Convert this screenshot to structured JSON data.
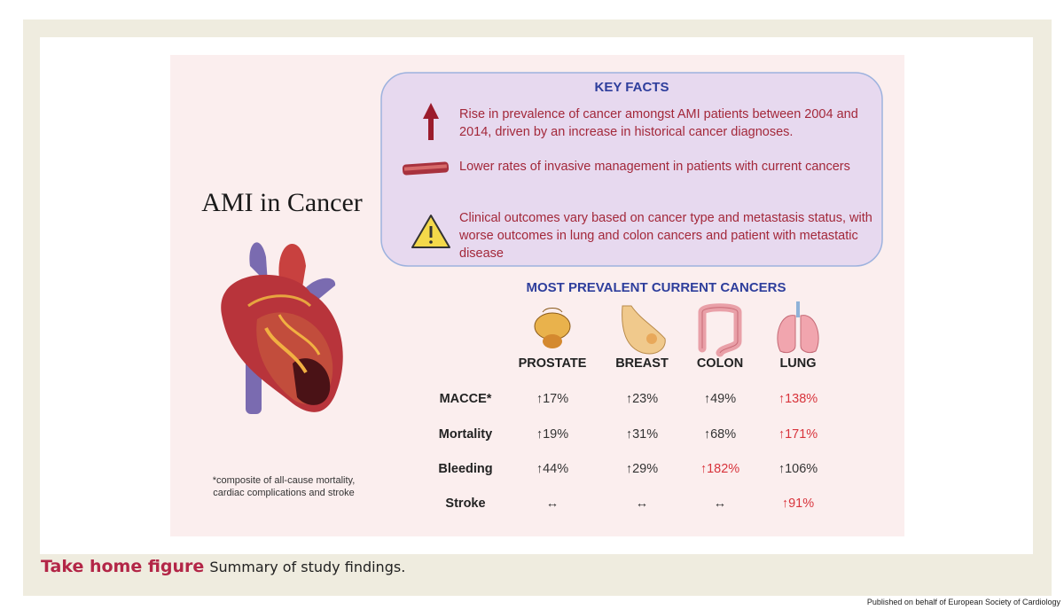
{
  "figure": {
    "title": "AMI in Cancer",
    "footnote": "*composite of all-cause mortality, cardiac complications and stroke",
    "key_facts": {
      "title": "KEY FACTS",
      "items": [
        "Rise in prevalence of cancer amongst AMI patients between 2004 and 2014, driven by an increase in historical cancer diagnoses.",
        "Lower rates of invasive management  in patients with current cancers",
        "Clinical outcomes vary based on cancer type and metastasis status, with worse outcomes in lung and colon cancers and patient with metastatic disease"
      ]
    },
    "table": {
      "title": "MOST PREVALENT CURRENT CANCERS",
      "columns": [
        "PROSTATE",
        "BREAST",
        "COLON",
        "LUNG"
      ],
      "rows": [
        {
          "label": "MACCE*",
          "cells": [
            {
              "text": "↑17%",
              "color": "#333333"
            },
            {
              "text": "↑23%",
              "color": "#333333"
            },
            {
              "text": "↑49%",
              "color": "#333333"
            },
            {
              "text": "↑138%",
              "color": "#d8343c"
            }
          ]
        },
        {
          "label": "Mortality",
          "cells": [
            {
              "text": "↑19%",
              "color": "#333333"
            },
            {
              "text": "↑31%",
              "color": "#333333"
            },
            {
              "text": "↑68%",
              "color": "#333333"
            },
            {
              "text": "↑171%",
              "color": "#d8343c"
            }
          ]
        },
        {
          "label": "Bleeding",
          "cells": [
            {
              "text": "↑44%",
              "color": "#333333"
            },
            {
              "text": "↑29%",
              "color": "#333333"
            },
            {
              "text": "↑182%",
              "color": "#d8343c"
            },
            {
              "text": "↑106%",
              "color": "#333333"
            }
          ]
        },
        {
          "label": "Stroke",
          "cells": [
            {
              "text": "↔",
              "color": "#333333"
            },
            {
              "text": "↔",
              "color": "#333333"
            },
            {
              "text": "↔",
              "color": "#333333"
            },
            {
              "text": "↑91%",
              "color": "#d8343c"
            }
          ]
        }
      ]
    }
  },
  "caption": {
    "label": "Take home figure",
    "text": "Summary of study findings."
  },
  "footer": "Published on behalf of European Society of Cardiology"
}
